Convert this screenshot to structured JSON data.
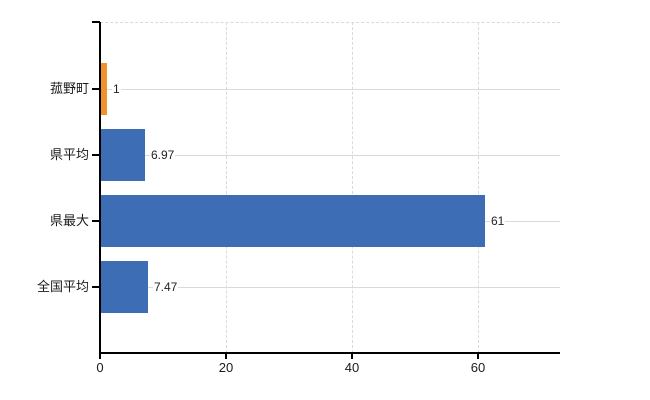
{
  "chart_data": {
    "type": "bar",
    "orientation": "horizontal",
    "title": "",
    "xlabel": "",
    "ylabel": "",
    "categories": [
      "菰野町",
      "県平均",
      "県最大",
      "全国平均"
    ],
    "values": [
      1,
      6.97,
      61,
      7.47
    ],
    "value_labels": [
      "1",
      "6.97",
      "61",
      "7.47"
    ],
    "series_colors": [
      "#f0912d",
      "#3d6eb5",
      "#3d6eb5",
      "#3d6eb5"
    ],
    "highlighted_category": "菰野町",
    "xlim": [
      0,
      73
    ],
    "x_ticks": [
      0,
      20,
      40,
      60
    ],
    "x_tick_labels": [
      "0",
      "20",
      "40",
      "60"
    ],
    "grid": true,
    "legend": "none",
    "colors": {
      "highlight_bar": "#f0912d",
      "default_bar": "#3d6eb5",
      "gridline": "#d7dcd7",
      "axis": "#000000",
      "text": "#222222",
      "background": "#ffffff"
    }
  }
}
